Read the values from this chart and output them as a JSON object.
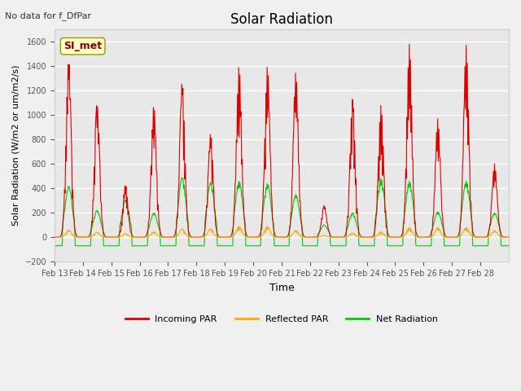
{
  "title": "Solar Radiation",
  "subtitle": "No data for f_DfPar",
  "ylabel": "Solar Radiation (W/m2 or um/m2/s)",
  "xlabel": "Time",
  "ylim": [
    -200,
    1700
  ],
  "yticks": [
    -200,
    0,
    200,
    400,
    600,
    800,
    1000,
    1200,
    1400,
    1600
  ],
  "xtick_labels": [
    "Feb 13",
    "Feb 14",
    "Feb 15",
    "Feb 16",
    "Feb 17",
    "Feb 18",
    "Feb 19",
    "Feb 20",
    "Feb 21",
    "Feb 22",
    "Feb 23",
    "Feb 24",
    "Feb 25",
    "Feb 26",
    "Feb 27",
    "Feb 28"
  ],
  "watermark_text": "SI_met",
  "background_color": "#f0f0f0",
  "plot_bg_color": "#e8e8e8",
  "grid_color": "#ffffff",
  "colors": {
    "incoming": "#dd0000",
    "reflected": "#ffaa00",
    "net": "#00cc00"
  },
  "legend_labels": [
    "Incoming PAR",
    "Reflected PAR",
    "Net Radiation"
  ],
  "peaks_incoming": [
    1450,
    1100,
    430,
    1080,
    1270,
    850,
    1400,
    1400,
    1350,
    260,
    1130,
    1080,
    1580,
    970,
    1570,
    600
  ],
  "peaks_reflected": [
    60,
    40,
    30,
    45,
    70,
    70,
    90,
    90,
    55,
    15,
    35,
    45,
    80,
    80,
    80,
    55
  ],
  "peaks_net": [
    420,
    220,
    310,
    200,
    490,
    450,
    460,
    440,
    350,
    100,
    200,
    480,
    460,
    210,
    460,
    200
  ]
}
